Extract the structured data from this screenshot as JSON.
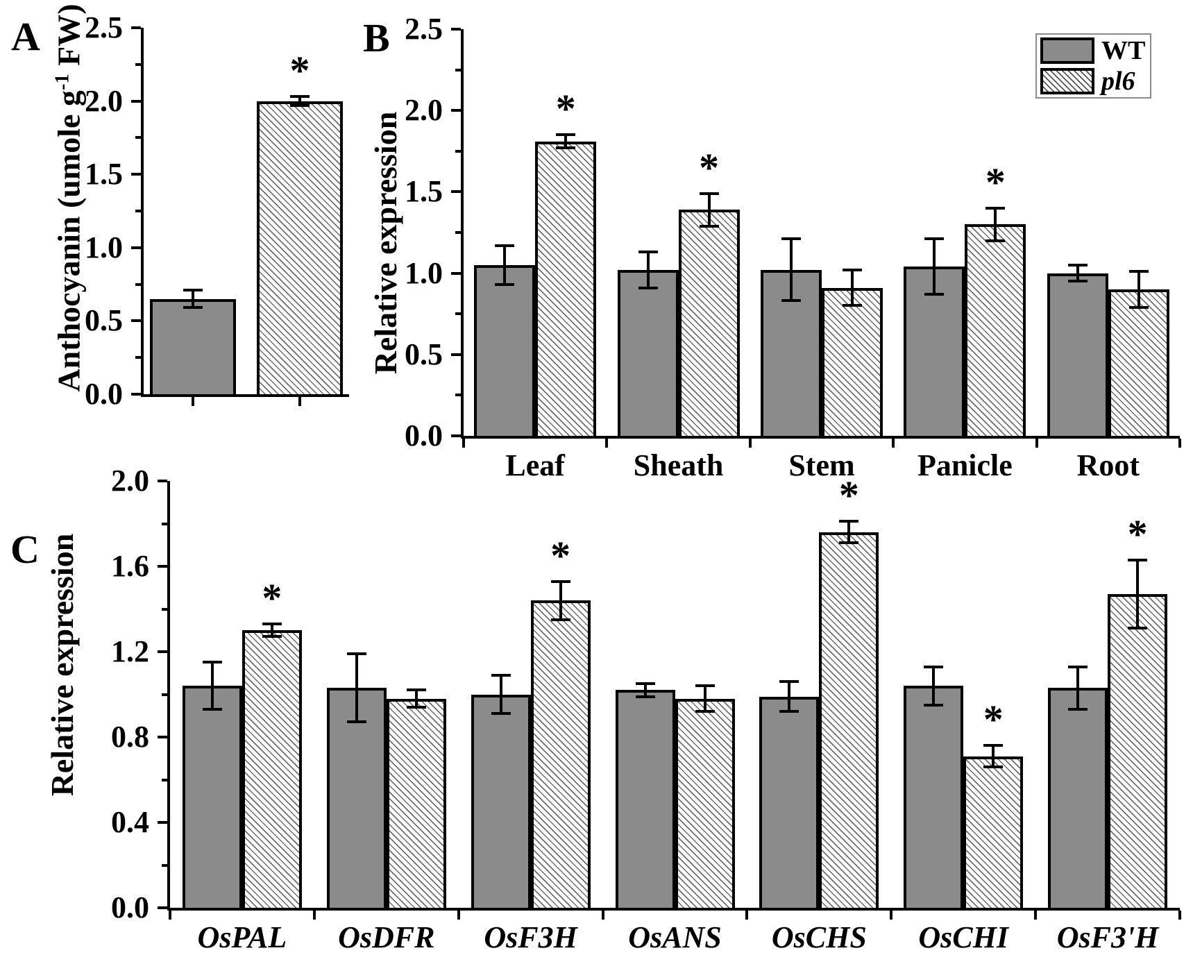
{
  "legend": {
    "wt_label": "WT",
    "pl6_label": "pl6"
  },
  "colors": {
    "bar_gray": "#8b8b8b",
    "hatch_line": "#6e6e6e",
    "axis": "#000000"
  },
  "chart_data": [
    {
      "type": "bar",
      "panel_letter": "A",
      "ylabel_pre": "Anthocyanin (umole g",
      "ylabel_sup": "-1",
      "ylabel_post": " FW)",
      "categories": [
        ""
      ],
      "ylim": [
        0,
        2.5
      ],
      "yticks": [
        "0.0",
        "0.5",
        "1.0",
        "1.5",
        "2.0",
        "2.5"
      ],
      "grid": false,
      "legend_position": "none",
      "series": [
        {
          "name": "WT",
          "values": [
            0.65
          ],
          "errors": [
            0.06
          ],
          "sig": [
            false
          ]
        },
        {
          "name": "pl6",
          "values": [
            2.0
          ],
          "errors": [
            0.03
          ],
          "sig": [
            true
          ]
        }
      ]
    },
    {
      "type": "bar",
      "panel_letter": "B",
      "ylabel": "Relative expression",
      "categories": [
        "Leaf",
        "Sheath",
        "Stem",
        "Panicle",
        "Root"
      ],
      "ylim": [
        0,
        2.5
      ],
      "yticks": [
        "0.0",
        "0.5",
        "1.0",
        "1.5",
        "2.0",
        "2.5"
      ],
      "grid": false,
      "legend_position": "top-right",
      "series": [
        {
          "name": "WT",
          "values": [
            1.05,
            1.02,
            1.02,
            1.04,
            1.0
          ],
          "errors": [
            0.12,
            0.11,
            0.19,
            0.17,
            0.05
          ],
          "sig": [
            false,
            false,
            false,
            false,
            false
          ]
        },
        {
          "name": "pl6",
          "values": [
            1.81,
            1.39,
            0.91,
            1.3,
            0.9
          ],
          "errors": [
            0.04,
            0.1,
            0.11,
            0.1,
            0.11
          ],
          "sig": [
            true,
            true,
            false,
            true,
            false
          ]
        }
      ]
    },
    {
      "type": "bar",
      "panel_letter": "C",
      "ylabel": "Relative expression",
      "categories": [
        "OsPAL",
        "OsDFR",
        "OsF3H",
        "OsANS",
        "OsCHS",
        "OsCHI",
        "OsF3'H"
      ],
      "ylim": [
        0,
        2.0
      ],
      "yticks": [
        "0.0",
        "0.4",
        "0.8",
        "1.2",
        "1.6",
        "2.0"
      ],
      "grid": false,
      "legend_position": "none",
      "series": [
        {
          "name": "WT",
          "values": [
            1.04,
            1.03,
            1.0,
            1.02,
            0.99,
            1.04,
            1.03
          ],
          "errors": [
            0.11,
            0.16,
            0.09,
            0.03,
            0.07,
            0.09,
            0.1
          ],
          "sig": [
            false,
            false,
            false,
            false,
            false,
            false,
            false
          ]
        },
        {
          "name": "pl6",
          "values": [
            1.3,
            0.98,
            1.44,
            0.98,
            1.76,
            0.71,
            1.47
          ],
          "errors": [
            0.03,
            0.04,
            0.09,
            0.06,
            0.05,
            0.05,
            0.16
          ],
          "sig": [
            true,
            false,
            true,
            false,
            true,
            true,
            true
          ]
        }
      ]
    }
  ]
}
